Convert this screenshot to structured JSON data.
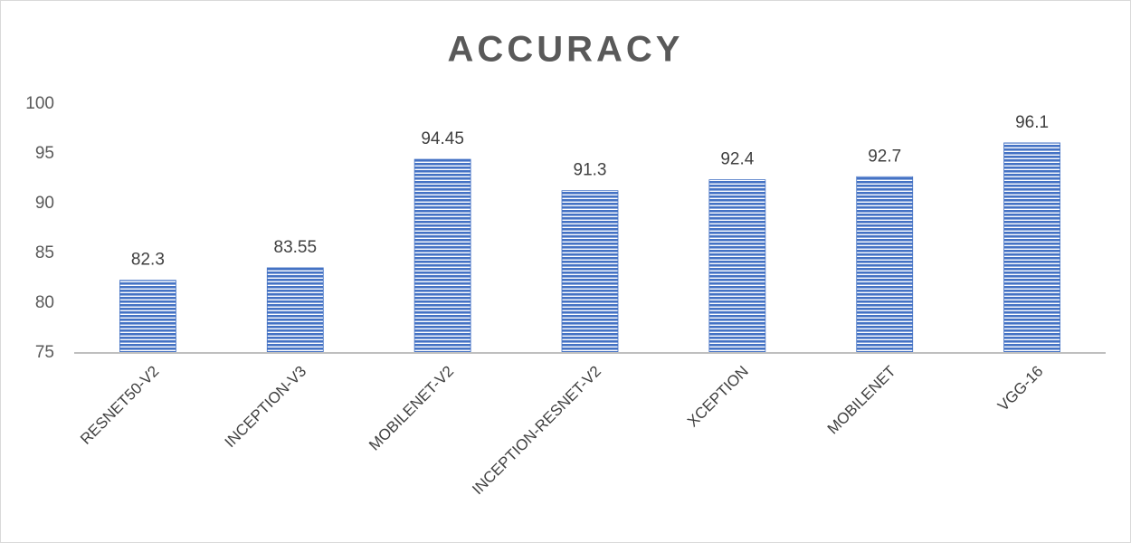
{
  "chart_data": {
    "type": "bar",
    "title": "ACCURACY",
    "categories": [
      "RESNET50-V2",
      "INCEPTION-V3",
      "MOBILENET-V2",
      "INCEPTION-RESNET-V2",
      "XCEPTION",
      "MOBILENET",
      "VGG-16"
    ],
    "values": [
      82.3,
      83.55,
      94.45,
      91.3,
      92.4,
      92.7,
      96.1
    ],
    "color": "#4472c4",
    "ylim": [
      75,
      100
    ],
    "yticks": [
      75,
      80,
      85,
      90,
      95,
      100
    ],
    "grid": false
  }
}
